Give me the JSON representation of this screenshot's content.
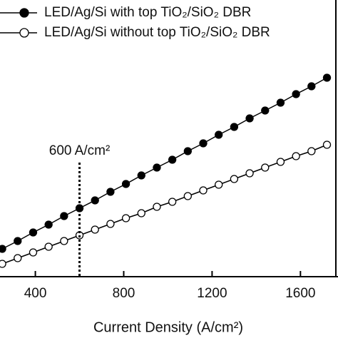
{
  "chart_data": {
    "type": "line",
    "x_label": "Current Density (A/cm²)",
    "x": [
      250,
      320,
      390,
      460,
      530,
      600,
      670,
      740,
      810,
      880,
      950,
      1020,
      1090,
      1160,
      1230,
      1300,
      1370,
      1440,
      1510,
      1580,
      1650,
      1720
    ],
    "series": [
      {
        "name": "LED/Ag/Si with top TiO₂/SiO₂ DBR",
        "color": "#000000",
        "marker": "filled",
        "values": [
          39,
          50,
          62,
          73,
          85,
          96,
          107,
          119,
          130,
          142,
          153,
          164,
          176,
          187,
          199,
          210,
          222,
          233,
          244,
          256,
          267,
          279
        ]
      },
      {
        "name": "LED/Ag/Si without top TiO₂/SiO₂ DBR",
        "color": "#000000",
        "marker": "hollow",
        "values": [
          18,
          26,
          34,
          42,
          50,
          58,
          66,
          74,
          82,
          89,
          98,
          105,
          113,
          121,
          129,
          137,
          145,
          153,
          161,
          169,
          176,
          185
        ]
      }
    ],
    "annotation": {
      "text": "600 A/cm²",
      "x": 600
    },
    "xlim": [
      240,
      1770
    ],
    "xticks": [
      400,
      800,
      1200,
      1600
    ],
    "ylim": [
      0,
      388
    ]
  }
}
